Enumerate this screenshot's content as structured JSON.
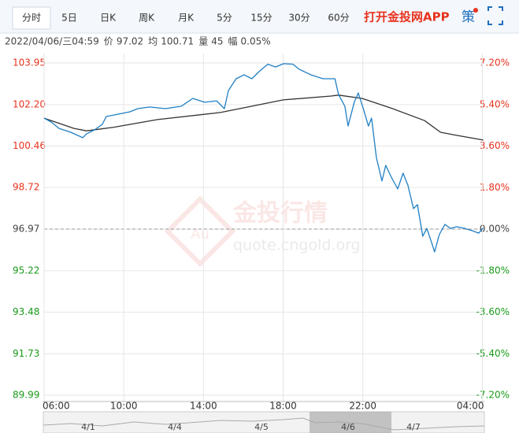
{
  "tabs": [
    "分时",
    "5日",
    "日K",
    "周K",
    "月K",
    "5分",
    "15分",
    "30分",
    "60分"
  ],
  "app_link": "打开金投网APP",
  "strategy_icon": "策",
  "info": {
    "time": "2022/04/06/三04:59",
    "price_label": "价",
    "price": "97.02",
    "avg_label": "均",
    "avg": "100.71",
    "volume_label": "量",
    "volume": "45",
    "change_label": "幅",
    "change": "0.05%"
  },
  "watermark": {
    "brand": "金投行情",
    "site": "quote.cngold.org",
    "logo": "Au"
  },
  "navigator": {
    "dates": [
      "4/1",
      "4/4",
      "4/5",
      "4/6",
      "4/7"
    ]
  },
  "chart_data": {
    "type": "line",
    "xlim": [
      0,
      22.1
    ],
    "xticks": [
      {
        "value": 0,
        "label": "06:00"
      },
      {
        "value": 4,
        "label": "10:00"
      },
      {
        "value": 8,
        "label": "14:00"
      },
      {
        "value": 12,
        "label": "18:00"
      },
      {
        "value": 16,
        "label": "22:00"
      },
      {
        "value": 22,
        "label": "04:00"
      }
    ],
    "ylim": [
      89.99,
      103.95
    ],
    "yticks": [
      103.95,
      {
        "value": 102.2,
        "label": "102.20"
      },
      100.46,
      98.72,
      96.97,
      95.22,
      93.48,
      91.73,
      89.99
    ],
    "y2lim": [
      -7.2,
      7.2
    ],
    "y2ticks": [
      {
        "value": 7.2,
        "label": "7.20%"
      },
      {
        "value": 5.4,
        "label": "5.40%"
      },
      {
        "value": 3.6,
        "label": "3.60%"
      },
      {
        "value": 1.8,
        "label": "1.80%"
      },
      {
        "value": 0,
        "label": "0.00%"
      },
      {
        "value": -1.8,
        "label": "-1.80%"
      },
      {
        "value": -3.6,
        "label": "-3.60%"
      },
      {
        "value": -5.4,
        "label": "-5.40%"
      },
      {
        "value": -7.2,
        "label": "-7.20%"
      }
    ],
    "grid": true,
    "up_color": "#e8321e",
    "down_color": "#1a9a1a",
    "flat_color": "#444444",
    "series": [
      {
        "name": "价",
        "color": "#1f7fc4",
        "x": [
          0,
          0.36,
          0.75,
          1.34,
          1.94,
          2.13,
          2.53,
          2.92,
          3.12,
          3.72,
          4.31,
          4.7,
          5.3,
          6.09,
          6.88,
          7.47,
          8.06,
          8.66,
          9.05,
          9.25,
          9.64,
          10.04,
          10.43,
          10.83,
          11.23,
          11.62,
          12.02,
          12.49,
          12.8,
          13.4,
          14.0,
          14.6,
          14.78,
          15.1,
          15.26,
          15.57,
          15.77,
          16.05,
          16.28,
          16.44,
          16.68,
          16.96,
          17.15,
          17.43,
          17.75,
          18.02,
          18.26,
          18.54,
          18.74,
          19.01,
          19.21,
          19.45,
          19.6,
          19.84,
          20.12,
          20.4,
          20.71,
          21.11,
          21.5,
          21.82,
          22.05
        ],
        "values": [
          101.63,
          101.47,
          101.2,
          101.04,
          100.81,
          100.97,
          101.14,
          101.37,
          101.7,
          101.8,
          101.9,
          102.03,
          102.1,
          102.03,
          102.13,
          102.46,
          102.3,
          102.36,
          102.03,
          102.79,
          103.29,
          103.45,
          103.29,
          103.62,
          103.9,
          103.78,
          103.92,
          103.9,
          103.69,
          103.45,
          103.29,
          103.29,
          102.63,
          102.13,
          101.3,
          102.3,
          102.69,
          101.96,
          101.3,
          101.63,
          99.98,
          98.99,
          99.65,
          99.15,
          98.66,
          99.32,
          98.82,
          97.83,
          98.0,
          96.67,
          97.0,
          96.41,
          96.01,
          96.74,
          97.17,
          97.0,
          97.07,
          97.0,
          96.9,
          96.8,
          97.02
        ]
      },
      {
        "name": "均",
        "color": "#333333",
        "x": [
          0,
          1.5,
          2.13,
          3.5,
          5.69,
          8.85,
          10.4,
          12.0,
          14.4,
          14.78,
          15.97,
          17.5,
          19.1,
          19.9,
          20.7,
          22.05
        ],
        "values": [
          101.63,
          101.2,
          101.1,
          101.25,
          101.57,
          101.87,
          102.13,
          102.4,
          102.56,
          102.6,
          102.46,
          102.03,
          101.53,
          101.04,
          100.91,
          100.71
        ]
      }
    ]
  }
}
